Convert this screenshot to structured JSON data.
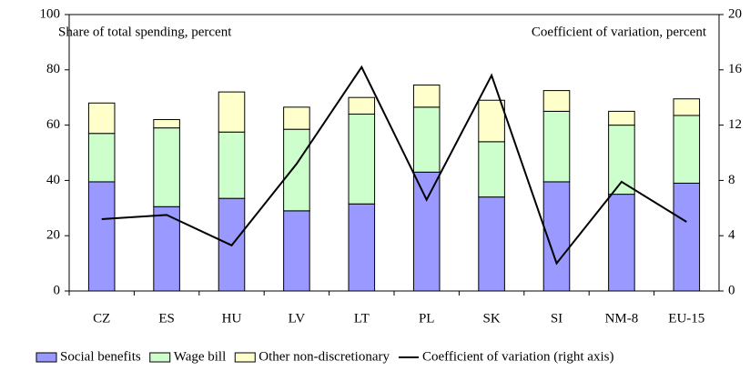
{
  "chart_data": {
    "type": "bar_line",
    "ylabel": "Share of total spending, percent",
    "y2label": "Coefficient of variation, percent",
    "categories": [
      "CZ",
      "ES",
      "HU",
      "LV",
      "LT",
      "PL",
      "SK",
      "SI",
      "NM-8",
      "EU-15"
    ],
    "series": [
      {
        "name": "Social benefits",
        "type": "bar",
        "color": "#9999ff",
        "values": [
          39.5,
          30.5,
          33.5,
          29,
          31.5,
          43,
          34,
          39.5,
          35,
          39
        ]
      },
      {
        "name": "Wage bill",
        "type": "bar",
        "color": "#ccffcc",
        "values": [
          17.5,
          28.5,
          24,
          29.5,
          32.5,
          23.5,
          20,
          25.5,
          25,
          24.5
        ]
      },
      {
        "name": "Other non-discretionary",
        "type": "bar",
        "color": "#ffffcc",
        "values": [
          11,
          3,
          14.5,
          8,
          6,
          8,
          15,
          7.5,
          5,
          6
        ]
      },
      {
        "name": "Coefficient of variation (right axis)",
        "type": "line",
        "axis": "y2",
        "color": "#000000",
        "values": [
          5.2,
          5.5,
          3.3,
          9.2,
          16.2,
          6.6,
          15.6,
          2.0,
          7.9,
          5.0
        ]
      }
    ],
    "ylim": [
      0,
      100
    ],
    "yticks": [
      0,
      20,
      40,
      60,
      80,
      100
    ],
    "y2lim": [
      0,
      20
    ],
    "y2ticks": [
      0,
      4,
      8,
      12,
      16,
      20
    ],
    "stacked": true,
    "grid": false
  }
}
